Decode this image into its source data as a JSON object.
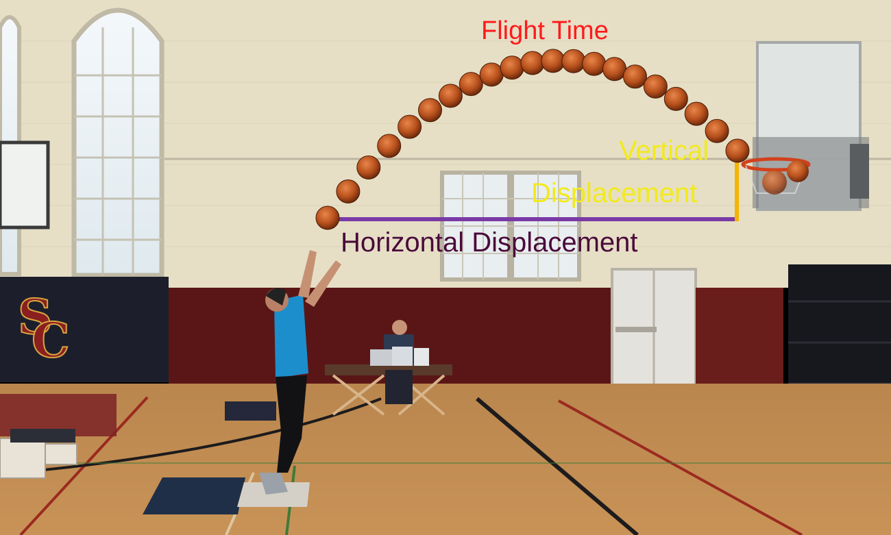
{
  "labels": {
    "flight_time": "Flight Time",
    "vertical_line1": "Vertical",
    "vertical_line2": "Displacement",
    "horizontal": "Horizontal Displacement"
  },
  "logo": {
    "letters": [
      "S",
      "C"
    ]
  },
  "colors": {
    "flight_time": "#ff1a1a",
    "vertical": "#f2ea1c",
    "horizontal_text": "#4a0a3a",
    "horizontal_line": "#7a3aa6",
    "vertical_line": "#f5b400",
    "ball": "#c65a23",
    "wall": "#e7e0c6",
    "wainscot": "#5a1616",
    "floor": "#c58a4a",
    "shirt": "#1d8ecc"
  },
  "trajectory_ball_count": 21
}
